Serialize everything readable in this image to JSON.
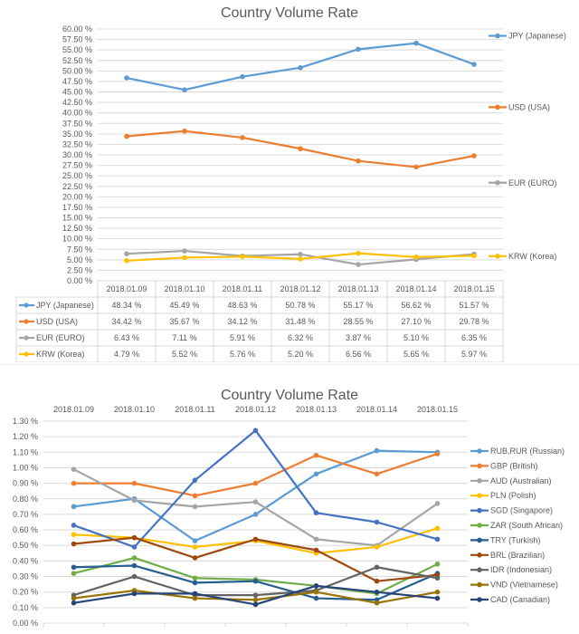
{
  "chart_data": [
    {
      "type": "line",
      "title": "Country Volume Rate",
      "xlabel": "",
      "ylabel": "",
      "ylim": [
        0,
        60
      ],
      "ytick_step": 2.5,
      "ytick_format": "percent_2dp",
      "grid": true,
      "legend_position": "right",
      "data_table": true,
      "categories": [
        "2018.01.09",
        "2018.01.10",
        "2018.01.11",
        "2018.01.12",
        "2018.01.13",
        "2018.01.14",
        "2018.01.15"
      ],
      "series": [
        {
          "name": "JPY (Japanese)",
          "color": "#5B9BD5",
          "values": [
            48.34,
            45.49,
            48.63,
            50.78,
            55.17,
            56.62,
            51.57
          ]
        },
        {
          "name": "USD (USA)",
          "color": "#ED7D31",
          "values": [
            34.42,
            35.67,
            34.12,
            31.48,
            28.55,
            27.1,
            29.78
          ]
        },
        {
          "name": "EUR (EURO)",
          "color": "#A5A5A5",
          "values": [
            6.43,
            7.11,
            5.91,
            6.32,
            3.87,
            5.1,
            6.35
          ]
        },
        {
          "name": "KRW (Korea)",
          "color": "#FFC000",
          "values": [
            4.79,
            5.52,
            5.76,
            5.2,
            6.56,
            5.65,
            5.97
          ]
        }
      ]
    },
    {
      "type": "line",
      "title": "Country Volume Rate",
      "xlabel": "",
      "ylabel": "",
      "ylim": [
        0,
        1.3
      ],
      "ytick_step": 0.1,
      "ytick_format": "percent_2dp",
      "grid": true,
      "legend_position": "right",
      "xaxis_position": "top",
      "categories": [
        "2018.01.09",
        "2018.01.10",
        "2018.01.11",
        "2018.01.12",
        "2018.01.13",
        "2018.01.14",
        "2018.01.15"
      ],
      "series": [
        {
          "name": "RUB,RUR (Russian)",
          "color": "#5B9BD5",
          "values": [
            0.75,
            0.8,
            0.53,
            0.7,
            0.96,
            1.11,
            1.1
          ]
        },
        {
          "name": "GBP (British)",
          "color": "#ED7D31",
          "values": [
            0.9,
            0.9,
            0.82,
            0.9,
            1.08,
            0.96,
            1.09
          ]
        },
        {
          "name": "AUD (Australian)",
          "color": "#A5A5A5",
          "values": [
            0.99,
            0.79,
            0.75,
            0.78,
            0.54,
            0.5,
            0.77
          ]
        },
        {
          "name": "PLN (Polish)",
          "color": "#FFC000",
          "values": [
            0.57,
            0.55,
            0.49,
            0.53,
            0.45,
            0.49,
            0.61
          ]
        },
        {
          "name": "SGD (Singapore)",
          "color": "#4472C4",
          "values": [
            0.63,
            0.49,
            0.92,
            1.24,
            0.71,
            0.65,
            0.54
          ]
        },
        {
          "name": "ZAR (South African)",
          "color": "#70AD47",
          "values": [
            0.32,
            0.42,
            0.29,
            0.28,
            0.24,
            0.19,
            0.38
          ]
        },
        {
          "name": "TRY (Turkish)",
          "color": "#255E91",
          "values": [
            0.36,
            0.37,
            0.26,
            0.27,
            0.16,
            0.15,
            0.32
          ]
        },
        {
          "name": "BRL (Brazilian)",
          "color": "#9E480E",
          "values": [
            0.51,
            0.55,
            0.42,
            0.54,
            0.47,
            0.27,
            0.31
          ]
        },
        {
          "name": "IDR (Indonesian)",
          "color": "#636363",
          "values": [
            0.18,
            0.3,
            0.18,
            0.18,
            0.21,
            0.36,
            0.29
          ]
        },
        {
          "name": "VND (Vietnamese)",
          "color": "#997300",
          "values": [
            0.16,
            0.21,
            0.16,
            0.15,
            0.2,
            0.13,
            0.2
          ]
        },
        {
          "name": "CAD (Canadian)",
          "color": "#264478",
          "values": [
            0.13,
            0.19,
            0.19,
            0.12,
            0.24,
            0.2,
            0.16
          ]
        }
      ]
    }
  ]
}
